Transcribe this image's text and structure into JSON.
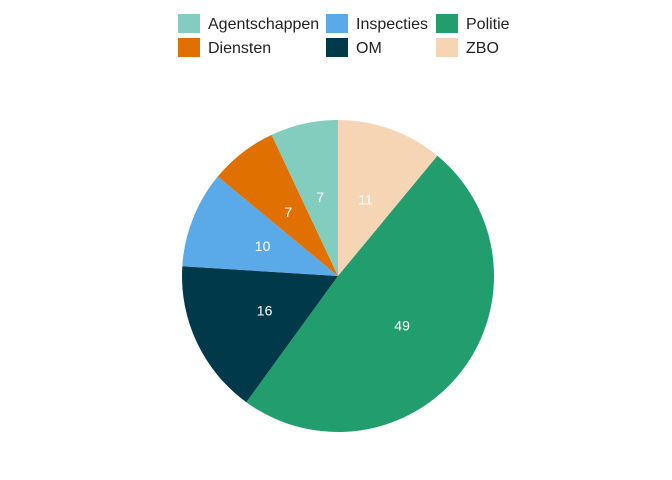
{
  "chart_data": {
    "type": "pie",
    "title": "",
    "categories": [
      "ZBO",
      "Politie",
      "OM",
      "Inspecties",
      "Diensten",
      "Agentschappen"
    ],
    "values": [
      11,
      49,
      16,
      10,
      7,
      7
    ],
    "slice_labels": [
      "11",
      "49",
      "16",
      "10",
      "7",
      "7"
    ],
    "colors": [
      "#F5D5B4",
      "#229D6E",
      "#003A4A",
      "#5AA9E9",
      "#E07000",
      "#82CDBD"
    ],
    "start": "12 o'clock",
    "direction": "clockwise",
    "legend": {
      "placement": "top",
      "items": [
        {
          "label": "Agentschappen",
          "color": "#82CDBD"
        },
        {
          "label": "Diensten",
          "color": "#E07000"
        },
        {
          "label": "Inspecties",
          "color": "#5AA9E9"
        },
        {
          "label": "OM",
          "color": "#003A4A"
        },
        {
          "label": "Politie",
          "color": "#229D6E"
        },
        {
          "label": "ZBO",
          "color": "#F5D5B4"
        }
      ]
    }
  }
}
